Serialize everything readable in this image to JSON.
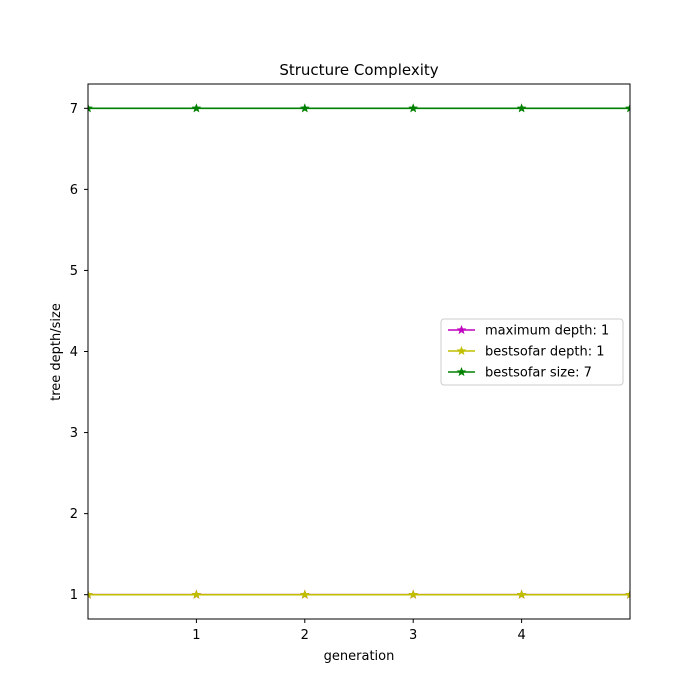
{
  "chart_data": {
    "type": "line",
    "title": "Structure Complexity",
    "xlabel": "generation",
    "ylabel": "tree depth/size",
    "xlim": [
      0,
      5
    ],
    "ylim": [
      0.7,
      7.3
    ],
    "xticks": [
      1,
      2,
      3,
      4
    ],
    "yticks": [
      1,
      2,
      3,
      4,
      5,
      6,
      7
    ],
    "grid": false,
    "legend_position": "center-right",
    "x": [
      0,
      1,
      2,
      3,
      4,
      5
    ],
    "series": [
      {
        "name": "maximum depth: 1",
        "color": "#bf00bf",
        "marker": "star",
        "values": [
          1,
          1,
          1,
          1,
          1,
          1
        ]
      },
      {
        "name": "bestsofar depth: 1",
        "color": "#bfbf00",
        "marker": "star",
        "values": [
          1,
          1,
          1,
          1,
          1,
          1
        ]
      },
      {
        "name": "bestsofar size: 7",
        "color": "#008000",
        "marker": "star",
        "values": [
          7,
          7,
          7,
          7,
          7,
          7
        ]
      }
    ]
  }
}
